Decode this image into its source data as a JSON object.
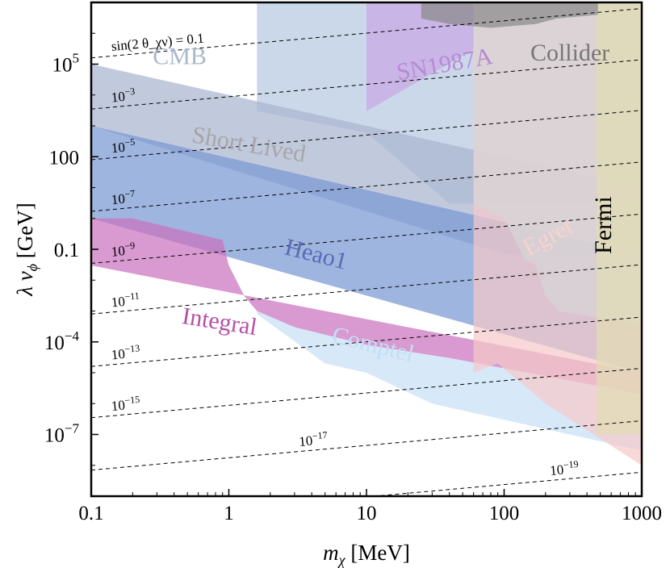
{
  "chart_data": {
    "type": "area",
    "xlabel": "m_χ [MeV]",
    "ylabel": "λ v_ϕ [GeV]",
    "x_scale": "log",
    "y_scale": "log",
    "xlim": [
      0.1,
      1000
    ],
    "ylim": [
      1e-09,
      10000000.0
    ],
    "x_ticks": [
      {
        "value": 0.1,
        "label": "0.1"
      },
      {
        "value": 1,
        "label": "1"
      },
      {
        "value": 10,
        "label": "10"
      },
      {
        "value": 100,
        "label": "100"
      },
      {
        "value": 1000,
        "label": "1000"
      }
    ],
    "y_ticks": [
      {
        "value": 1e-07,
        "base": "10",
        "exp": "−7"
      },
      {
        "value": 0.0001,
        "base": "10",
        "exp": "−4"
      },
      {
        "value": 0.1,
        "label": "0.1"
      },
      {
        "value": 100,
        "label": "100"
      },
      {
        "value": 100000.0,
        "base": "10",
        "exp": "5"
      }
    ],
    "grid": false,
    "legend": "none",
    "regions": [
      {
        "name": "CMB",
        "label": "CMB",
        "color": "#b7c9e0",
        "label_color": "#aab8cc",
        "label_at": [
          0.28,
          100000.0
        ],
        "rotate": 0,
        "points": [
          [
            0.1,
            10000000.0
          ],
          [
            1000,
            10000000.0
          ],
          [
            1000,
            3
          ],
          [
            60,
            3
          ],
          [
            40,
            3
          ],
          [
            10,
            600
          ],
          [
            1.6,
            3000.0
          ],
          [
            1.6,
            10000000.0
          ]
        ]
      },
      {
        "name": "Short Lived",
        "label": "Short Lived",
        "color": "#a9b4d0",
        "label_color": "#a6a6a6",
        "label_at": [
          0.53,
          300
        ],
        "rotate": 10,
        "points": [
          [
            0.1,
            100000.0
          ],
          [
            1000,
            10
          ],
          [
            1000,
            0.07
          ],
          [
            100,
            0.07
          ],
          [
            0.1,
            1000.0
          ]
        ]
      },
      {
        "name": "Heao1",
        "label": "Heao1",
        "color": "#7898d2",
        "label_color": "#5a6ab8",
        "label_at": [
          2.5,
          0.07
        ],
        "rotate": 14,
        "points": [
          [
            0.1,
            1000.0
          ],
          [
            1000,
            0.07
          ],
          [
            1000,
            1e-05
          ],
          [
            0.1,
            1
          ]
        ]
      },
      {
        "name": "Integral",
        "label": "Integral",
        "color": "#c973bf",
        "label_color": "#b64fa7",
        "label_at": [
          0.45,
          0.0004
        ],
        "rotate": 9,
        "points": [
          [
            0.1,
            1
          ],
          [
            0.2,
            1
          ],
          [
            0.9,
            0.2
          ],
          [
            1,
            0.03
          ],
          [
            1.3,
            0.003
          ],
          [
            1.6,
            0.001
          ],
          [
            3,
            0.0003
          ],
          [
            10,
            8e-05
          ],
          [
            40,
            3e-05
          ],
          [
            1000,
            2e-06
          ],
          [
            1000,
            1e-05
          ],
          [
            0.1,
            0.03
          ]
        ]
      },
      {
        "name": "Comptel",
        "label": "Comptel",
        "color": "#c8e0f7",
        "label_color": "#c5ddf5",
        "label_at": [
          5.5,
          0.0001
        ],
        "rotate": 14,
        "points": [
          [
            1.6,
            10000000.0
          ],
          [
            1.6,
            0.001
          ],
          [
            3,
            0.0003
          ],
          [
            10,
            8e-05
          ],
          [
            40,
            3e-05
          ],
          [
            1000,
            2e-06
          ],
          [
            1000,
            3e-08
          ],
          [
            30,
            1e-06
          ],
          [
            10,
            1e-05
          ],
          [
            5,
            2e-05
          ],
          [
            1.6,
            0.0008
          ]
        ]
      },
      {
        "name": "SN1987A",
        "label": "SN1987A",
        "color": "#c8a8e4",
        "label_color": "#b78ad6",
        "label_at": [
          17,
          30000.0
        ],
        "rotate": -10,
        "points": [
          [
            10,
            10000000.0
          ],
          [
            60,
            10000000.0
          ],
          [
            60,
            300000.0
          ],
          [
            10,
            3000.0
          ]
        ]
      },
      {
        "name": "Egret",
        "label": "Egret",
        "color": "#f5c9c9",
        "label_color": "#f7d3d0",
        "label_at": [
          150,
          0.06
        ],
        "rotate": -28,
        "points": [
          [
            60,
            10000000.0
          ],
          [
            1000,
            10000000.0
          ],
          [
            1000,
            1e-08
          ],
          [
            200,
            1e-06
          ],
          [
            90,
            2e-05
          ],
          [
            60,
            1e-05
          ]
        ]
      },
      {
        "name": "Collider",
        "label": "Collider",
        "color": "#d6d6d6",
        "label_color": "#777777",
        "label_at": [
          155,
          130000.0
        ],
        "rotate": 0,
        "points": [
          [
            60,
            10000000.0
          ],
          [
            1000,
            10000000.0
          ],
          [
            1000,
            0.0004
          ],
          [
            500,
            0.0006
          ],
          [
            250,
            0.001
          ],
          [
            200,
            0.003
          ],
          [
            170,
            0.03
          ],
          [
            140,
            0.05
          ],
          [
            100,
            1
          ],
          [
            60,
            3
          ]
        ]
      },
      {
        "name": "Fermi",
        "label": "Fermi",
        "color": "#e2dcb4",
        "label_color": "#000000",
        "label_at": [
          600,
          0.07
        ],
        "rotate": -90,
        "points": [
          [
            470,
            10000000.0
          ],
          [
            1000,
            10000000.0
          ],
          [
            1000,
            1e-07
          ],
          [
            470,
            1e-07
          ]
        ]
      },
      {
        "name": "Collider-dark",
        "label": "",
        "color": "#8a8a8a",
        "points": [
          [
            25,
            10000000.0
          ],
          [
            480,
            10000000.0
          ],
          [
            480,
            4000000.0
          ],
          [
            240,
            3000000.0
          ],
          [
            170,
            2000000.0
          ],
          [
            80,
            1500000.0
          ],
          [
            40,
            2000000.0
          ],
          [
            25,
            3000000.0
          ]
        ]
      }
    ],
    "mixing_contours": {
      "style": "dashed",
      "slope_decades_per_decade": 0.4,
      "lines": [
        {
          "label": "sin(2 θ_χν) = 0.1",
          "y_at_xmin": 160000.0
        },
        {
          "label": "10",
          "exp": "−3",
          "y_at_xmin": 3500.0
        },
        {
          "label": "10",
          "exp": "−5",
          "y_at_xmin": 80
        },
        {
          "label": "10",
          "exp": "−7",
          "y_at_xmin": 1.7
        },
        {
          "label": "10",
          "exp": "−9",
          "y_at_xmin": 0.035
        },
        {
          "label": "10",
          "exp": "−11",
          "y_at_xmin": 0.0008
        },
        {
          "label": "10",
          "exp": "−13",
          "y_at_xmin": 1.6e-05
        },
        {
          "label": "10",
          "exp": "−15",
          "y_at_xmin": 3.5e-07
        },
        {
          "label": "10",
          "exp": "−17",
          "y_at_xmin": 7e-09
        },
        {
          "label": "10",
          "exp": "−19",
          "y_at_xmin": 1.5e-10
        }
      ]
    }
  }
}
